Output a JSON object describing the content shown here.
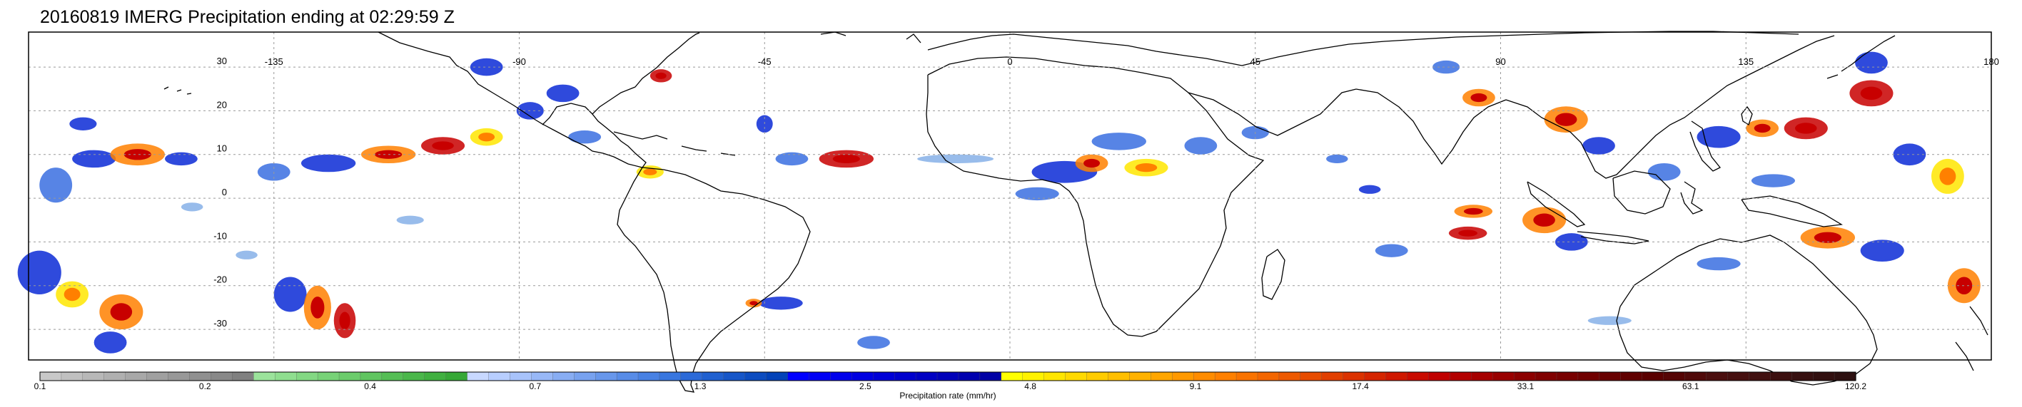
{
  "title": "20160819 IMERG Precipitation ending at 02:29:59 Z",
  "map": {
    "projection": "equirectangular",
    "lon_range": [
      -180,
      180
    ],
    "lat_range": [
      -37,
      38
    ],
    "lon_ticks": [
      {
        "value": -135,
        "label": "-135"
      },
      {
        "value": -90,
        "label": "-90"
      },
      {
        "value": -45,
        "label": "-45"
      },
      {
        "value": 0,
        "label": "0"
      },
      {
        "value": 45,
        "label": "45"
      },
      {
        "value": 90,
        "label": "90"
      },
      {
        "value": 135,
        "label": "135"
      },
      {
        "value": 180,
        "label": "180"
      }
    ],
    "lat_ticks": [
      {
        "value": 30,
        "label": "30"
      },
      {
        "value": 20,
        "label": "20"
      },
      {
        "value": 10,
        "label": "10"
      },
      {
        "value": 0,
        "label": "0"
      },
      {
        "value": -10,
        "label": "-10"
      },
      {
        "value": -20,
        "label": "-20"
      },
      {
        "value": -30,
        "label": "-30"
      }
    ],
    "gridlines": true,
    "coastline_color": "#000000",
    "precip_cells": [
      {
        "lon": -175,
        "lat": 3,
        "w": 6,
        "h": 8,
        "c": 2
      },
      {
        "lon": -168,
        "lat": 9,
        "w": 8,
        "h": 4,
        "c": 3
      },
      {
        "lon": -160,
        "lat": 10,
        "w": 10,
        "h": 5,
        "c": 5
      },
      {
        "lon": -152,
        "lat": 9,
        "w": 6,
        "h": 3,
        "c": 3
      },
      {
        "lon": -170,
        "lat": 17,
        "w": 5,
        "h": 3,
        "c": 3
      },
      {
        "lon": -178,
        "lat": -17,
        "w": 8,
        "h": 10,
        "c": 3
      },
      {
        "lon": -172,
        "lat": -22,
        "w": 6,
        "h": 6,
        "c": 4
      },
      {
        "lon": -163,
        "lat": -26,
        "w": 8,
        "h": 8,
        "c": 5
      },
      {
        "lon": -165,
        "lat": -33,
        "w": 6,
        "h": 5,
        "c": 3
      },
      {
        "lon": -132,
        "lat": -22,
        "w": 6,
        "h": 8,
        "c": 3
      },
      {
        "lon": -127,
        "lat": -25,
        "w": 5,
        "h": 10,
        "c": 5
      },
      {
        "lon": -122,
        "lat": -28,
        "w": 4,
        "h": 8,
        "c": 6
      },
      {
        "lon": -135,
        "lat": 6,
        "w": 6,
        "h": 4,
        "c": 2
      },
      {
        "lon": -125,
        "lat": 8,
        "w": 10,
        "h": 4,
        "c": 3
      },
      {
        "lon": -114,
        "lat": 10,
        "w": 10,
        "h": 4,
        "c": 5
      },
      {
        "lon": -104,
        "lat": 12,
        "w": 8,
        "h": 4,
        "c": 6
      },
      {
        "lon": -96,
        "lat": 14,
        "w": 6,
        "h": 4,
        "c": 4
      },
      {
        "lon": -88,
        "lat": 20,
        "w": 5,
        "h": 4,
        "c": 3
      },
      {
        "lon": -82,
        "lat": 24,
        "w": 6,
        "h": 4,
        "c": 3
      },
      {
        "lon": -96,
        "lat": 30,
        "w": 6,
        "h": 4,
        "c": 3
      },
      {
        "lon": -78,
        "lat": 14,
        "w": 6,
        "h": 3,
        "c": 2
      },
      {
        "lon": -66,
        "lat": 6,
        "w": 5,
        "h": 3,
        "c": 4
      },
      {
        "lon": -64,
        "lat": 28,
        "w": 4,
        "h": 3,
        "c": 6
      },
      {
        "lon": -45,
        "lat": 17,
        "w": 3,
        "h": 4,
        "c": 3
      },
      {
        "lon": -30,
        "lat": 9,
        "w": 10,
        "h": 4,
        "c": 6
      },
      {
        "lon": -40,
        "lat": 9,
        "w": 6,
        "h": 3,
        "c": 2
      },
      {
        "lon": -42,
        "lat": -24,
        "w": 8,
        "h": 3,
        "c": 3
      },
      {
        "lon": -47,
        "lat": -24,
        "w": 3,
        "h": 2,
        "c": 5
      },
      {
        "lon": -25,
        "lat": -33,
        "w": 6,
        "h": 3,
        "c": 2
      },
      {
        "lon": 10,
        "lat": 6,
        "w": 12,
        "h": 5,
        "c": 3
      },
      {
        "lon": 15,
        "lat": 8,
        "w": 6,
        "h": 4,
        "c": 5
      },
      {
        "lon": 25,
        "lat": 7,
        "w": 8,
        "h": 4,
        "c": 4
      },
      {
        "lon": 35,
        "lat": 12,
        "w": 6,
        "h": 4,
        "c": 2
      },
      {
        "lon": 20,
        "lat": 13,
        "w": 10,
        "h": 4,
        "c": 2
      },
      {
        "lon": 5,
        "lat": 1,
        "w": 8,
        "h": 3,
        "c": 2
      },
      {
        "lon": 45,
        "lat": 15,
        "w": 5,
        "h": 3,
        "c": 2
      },
      {
        "lon": 86,
        "lat": 23,
        "w": 6,
        "h": 4,
        "c": 5
      },
      {
        "lon": 80,
        "lat": 30,
        "w": 5,
        "h": 3,
        "c": 2
      },
      {
        "lon": 85,
        "lat": -3,
        "w": 7,
        "h": 3,
        "c": 5
      },
      {
        "lon": 84,
        "lat": -8,
        "w": 7,
        "h": 3,
        "c": 6
      },
      {
        "lon": 70,
        "lat": -12,
        "w": 6,
        "h": 3,
        "c": 2
      },
      {
        "lon": 102,
        "lat": 18,
        "w": 8,
        "h": 6,
        "c": 5
      },
      {
        "lon": 108,
        "lat": 12,
        "w": 6,
        "h": 4,
        "c": 3
      },
      {
        "lon": 98,
        "lat": -5,
        "w": 8,
        "h": 6,
        "c": 5
      },
      {
        "lon": 103,
        "lat": -10,
        "w": 6,
        "h": 4,
        "c": 3
      },
      {
        "lon": 130,
        "lat": 14,
        "w": 8,
        "h": 5,
        "c": 3
      },
      {
        "lon": 138,
        "lat": 16,
        "w": 6,
        "h": 4,
        "c": 5
      },
      {
        "lon": 146,
        "lat": 16,
        "w": 8,
        "h": 5,
        "c": 6
      },
      {
        "lon": 158,
        "lat": 24,
        "w": 8,
        "h": 6,
        "c": 6
      },
      {
        "lon": 158,
        "lat": 31,
        "w": 6,
        "h": 5,
        "c": 3
      },
      {
        "lon": 165,
        "lat": 10,
        "w": 6,
        "h": 5,
        "c": 3
      },
      {
        "lon": 172,
        "lat": 5,
        "w": 6,
        "h": 8,
        "c": 4
      },
      {
        "lon": 150,
        "lat": -9,
        "w": 10,
        "h": 5,
        "c": 5
      },
      {
        "lon": 160,
        "lat": -12,
        "w": 8,
        "h": 5,
        "c": 3
      },
      {
        "lon": 175,
        "lat": -20,
        "w": 6,
        "h": 8,
        "c": 5
      },
      {
        "lon": 130,
        "lat": -15,
        "w": 8,
        "h": 3,
        "c": 2
      },
      {
        "lon": 120,
        "lat": 6,
        "w": 6,
        "h": 4,
        "c": 2
      },
      {
        "lon": 140,
        "lat": 4,
        "w": 8,
        "h": 3,
        "c": 2
      },
      {
        "lon": 60,
        "lat": 9,
        "w": 4,
        "h": 2,
        "c": 2
      },
      {
        "lon": 66,
        "lat": 2,
        "w": 4,
        "h": 2,
        "c": 3
      },
      {
        "lon": -150,
        "lat": -2,
        "w": 4,
        "h": 2,
        "c": 1
      },
      {
        "lon": -110,
        "lat": -5,
        "w": 5,
        "h": 2,
        "c": 1
      },
      {
        "lon": -140,
        "lat": -13,
        "w": 4,
        "h": 2,
        "c": 1
      },
      {
        "lon": -10,
        "lat": 9,
        "w": 14,
        "h": 2,
        "c": 1
      },
      {
        "lon": 110,
        "lat": -28,
        "w": 8,
        "h": 2,
        "c": 1
      }
    ]
  },
  "colorbar": {
    "label": "Precipitation rate (mm/hr)",
    "tick_labels": [
      "0.1",
      "0.2",
      "0.4",
      "0.7",
      "1.3",
      "2.5",
      "4.8",
      "9.1",
      "17.4",
      "33.1",
      "63.1",
      "120.2"
    ],
    "colors": [
      "#c8c8c8",
      "#c0c0c0",
      "#b8b8b8",
      "#b0b0b0",
      "#a8a8a8",
      "#a0a0a0",
      "#989898",
      "#909090",
      "#888888",
      "#808080",
      "#9be39b",
      "#8fde8f",
      "#83d883",
      "#77d277",
      "#6bcc6b",
      "#60c560",
      "#55be55",
      "#4ab74a",
      "#40b040",
      "#36a836",
      "#c8d8ff",
      "#b8ceff",
      "#a8c3fb",
      "#98b8f7",
      "#88adf3",
      "#78a2ef",
      "#6897eb",
      "#588ce7",
      "#4881e3",
      "#3876df",
      "#2c6ad8",
      "#2060d0",
      "#1656c8",
      "#0c4cc0",
      "#0242b8",
      "#0000ff",
      "#0000f5",
      "#0000eb",
      "#0000e1",
      "#0000d7",
      "#0000cd",
      "#0000c3",
      "#0000b9",
      "#0000af",
      "#0000a5",
      "#ffff00",
      "#fff200",
      "#ffe600",
      "#ffd900",
      "#ffcc00",
      "#ffbf00",
      "#ffb200",
      "#ffa600",
      "#ff9900",
      "#ff8c00",
      "#ff8000",
      "#f97300",
      "#f36600",
      "#ed5900",
      "#e74c00",
      "#e13f00",
      "#db3200",
      "#d52500",
      "#cf1800",
      "#c90b00",
      "#c00000",
      "#b30000",
      "#a60000",
      "#990000",
      "#8c0000",
      "#800000",
      "#780000",
      "#700000",
      "#680000",
      "#600000",
      "#5a0000",
      "#550505",
      "#500a0a",
      "#4b0f0f",
      "#461010",
      "#411010",
      "#3c1010",
      "#371010",
      "#321010",
      "#2d1010"
    ],
    "precip_palette": [
      "#8ccc8c",
      "#86b0e8",
      "#3a6ee0",
      "#0a2ad6",
      "#ffe600",
      "#ff8000",
      "#c80000"
    ]
  }
}
